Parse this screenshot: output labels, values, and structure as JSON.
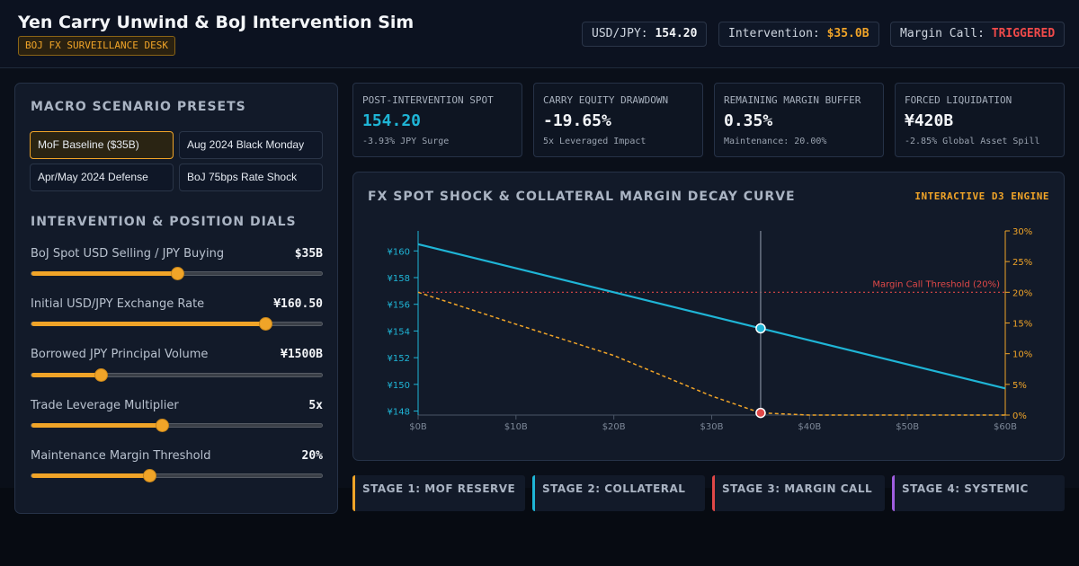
{
  "header": {
    "title": "Yen Carry Unwind & BoJ Intervention Sim",
    "badge": "BOJ FX SURVEILLANCE DESK",
    "stats": [
      {
        "label": "USD/JPY:",
        "value": "154.20"
      },
      {
        "label": "Intervention:",
        "value": "$35.0B"
      },
      {
        "label": "Margin Call:",
        "value": "TRIGGERED"
      }
    ]
  },
  "presets": {
    "title": "MACRO SCENARIO PRESETS",
    "buttons": [
      "MoF Baseline ($35B)",
      "Aug 2024 Black Monday",
      "Apr/May 2024 Defense",
      "BoJ 75bps Rate Shock"
    ]
  },
  "dials": {
    "title": "INTERVENTION & POSITION DIALS",
    "items": [
      {
        "label": "BoJ Spot USD Selling / JPY Buying",
        "value": "$35B"
      },
      {
        "label": "Initial USD/JPY Exchange Rate",
        "value": "¥160.50"
      },
      {
        "label": "Borrowed JPY Principal Volume",
        "value": "¥1500B"
      },
      {
        "label": "Trade Leverage Multiplier",
        "value": "5x"
      },
      {
        "label": "Maintenance Margin Threshold",
        "value": "20%"
      }
    ]
  },
  "kpis": [
    {
      "label": "POST-INTERVENTION SPOT",
      "value": "154.20",
      "sub": "-3.93% JPY Surge"
    },
    {
      "label": "CARRY EQUITY DRAWDOWN",
      "value": "-19.65%",
      "sub": "5x Leveraged Impact"
    },
    {
      "label": "REMAINING MARGIN BUFFER",
      "value": "0.35%",
      "sub": "Maintenance: 20.00%"
    },
    {
      "label": "FORCED LIQUIDATION",
      "value": "¥420B",
      "sub": "-2.85% Global Asset Spill"
    }
  ],
  "chart_data": {
    "type": "line",
    "title": "FX SPOT SHOCK & COLLATERAL MARGIN DECAY CURVE",
    "badge": "INTERACTIVE D3 ENGINE",
    "x": [
      0,
      10,
      20,
      30,
      35,
      40,
      50,
      60
    ],
    "xlim": [
      0,
      60
    ],
    "xticks": [
      {
        "value": 0,
        "label": "$0B"
      },
      {
        "value": 10,
        "label": "$10B"
      },
      {
        "value": 20,
        "label": "$20B"
      },
      {
        "value": 30,
        "label": "$30B"
      },
      {
        "value": 40,
        "label": "$40B"
      },
      {
        "value": 50,
        "label": "$50B"
      },
      {
        "value": 60,
        "label": "$60B"
      }
    ],
    "ylim": [
      147.7,
      161.5
    ],
    "yticks": [
      {
        "value": 148,
        "label": "¥148"
      },
      {
        "value": 150,
        "label": "¥150"
      },
      {
        "value": 152,
        "label": "¥152"
      },
      {
        "value": 154,
        "label": "¥154"
      },
      {
        "value": 156,
        "label": "¥156"
      },
      {
        "value": 158,
        "label": "¥158"
      },
      {
        "value": 160,
        "label": "¥160"
      }
    ],
    "y2lim": [
      0,
      30
    ],
    "y2ticks": [
      {
        "value": 0,
        "label": "0%"
      },
      {
        "value": 5,
        "label": "5%"
      },
      {
        "value": 10,
        "label": "10%"
      },
      {
        "value": 15,
        "label": "15%"
      },
      {
        "value": 20,
        "label": "20%"
      },
      {
        "value": 25,
        "label": "25%"
      },
      {
        "value": 30,
        "label": "30%"
      }
    ],
    "series": [
      {
        "color": "#1fb5d6",
        "values": [
          160.5,
          158.7,
          156.9,
          155.1,
          154.2,
          153.3,
          151.5,
          149.7
        ]
      },
      {
        "color": "#f0a428",
        "axis": "y2",
        "dashed": true,
        "values": [
          20,
          14.8,
          9.7,
          3.1,
          0.35,
          0,
          0,
          0
        ]
      }
    ],
    "threshold": {
      "value": 20,
      "axis": "y2",
      "label": "Margin Call Threshold (20%)",
      "color": "#e04848"
    },
    "marker_index": 4
  },
  "stages": [
    {
      "label": "STAGE 1: MOF RESERVE",
      "color": "#f0a428"
    },
    {
      "label": "STAGE 2: COLLATERAL",
      "color": "#1fb5d6"
    },
    {
      "label": "STAGE 3: MARGIN CALL",
      "color": "#e04848"
    },
    {
      "label": "STAGE 4: SYSTEMIC",
      "color": "#a05ee0"
    }
  ]
}
